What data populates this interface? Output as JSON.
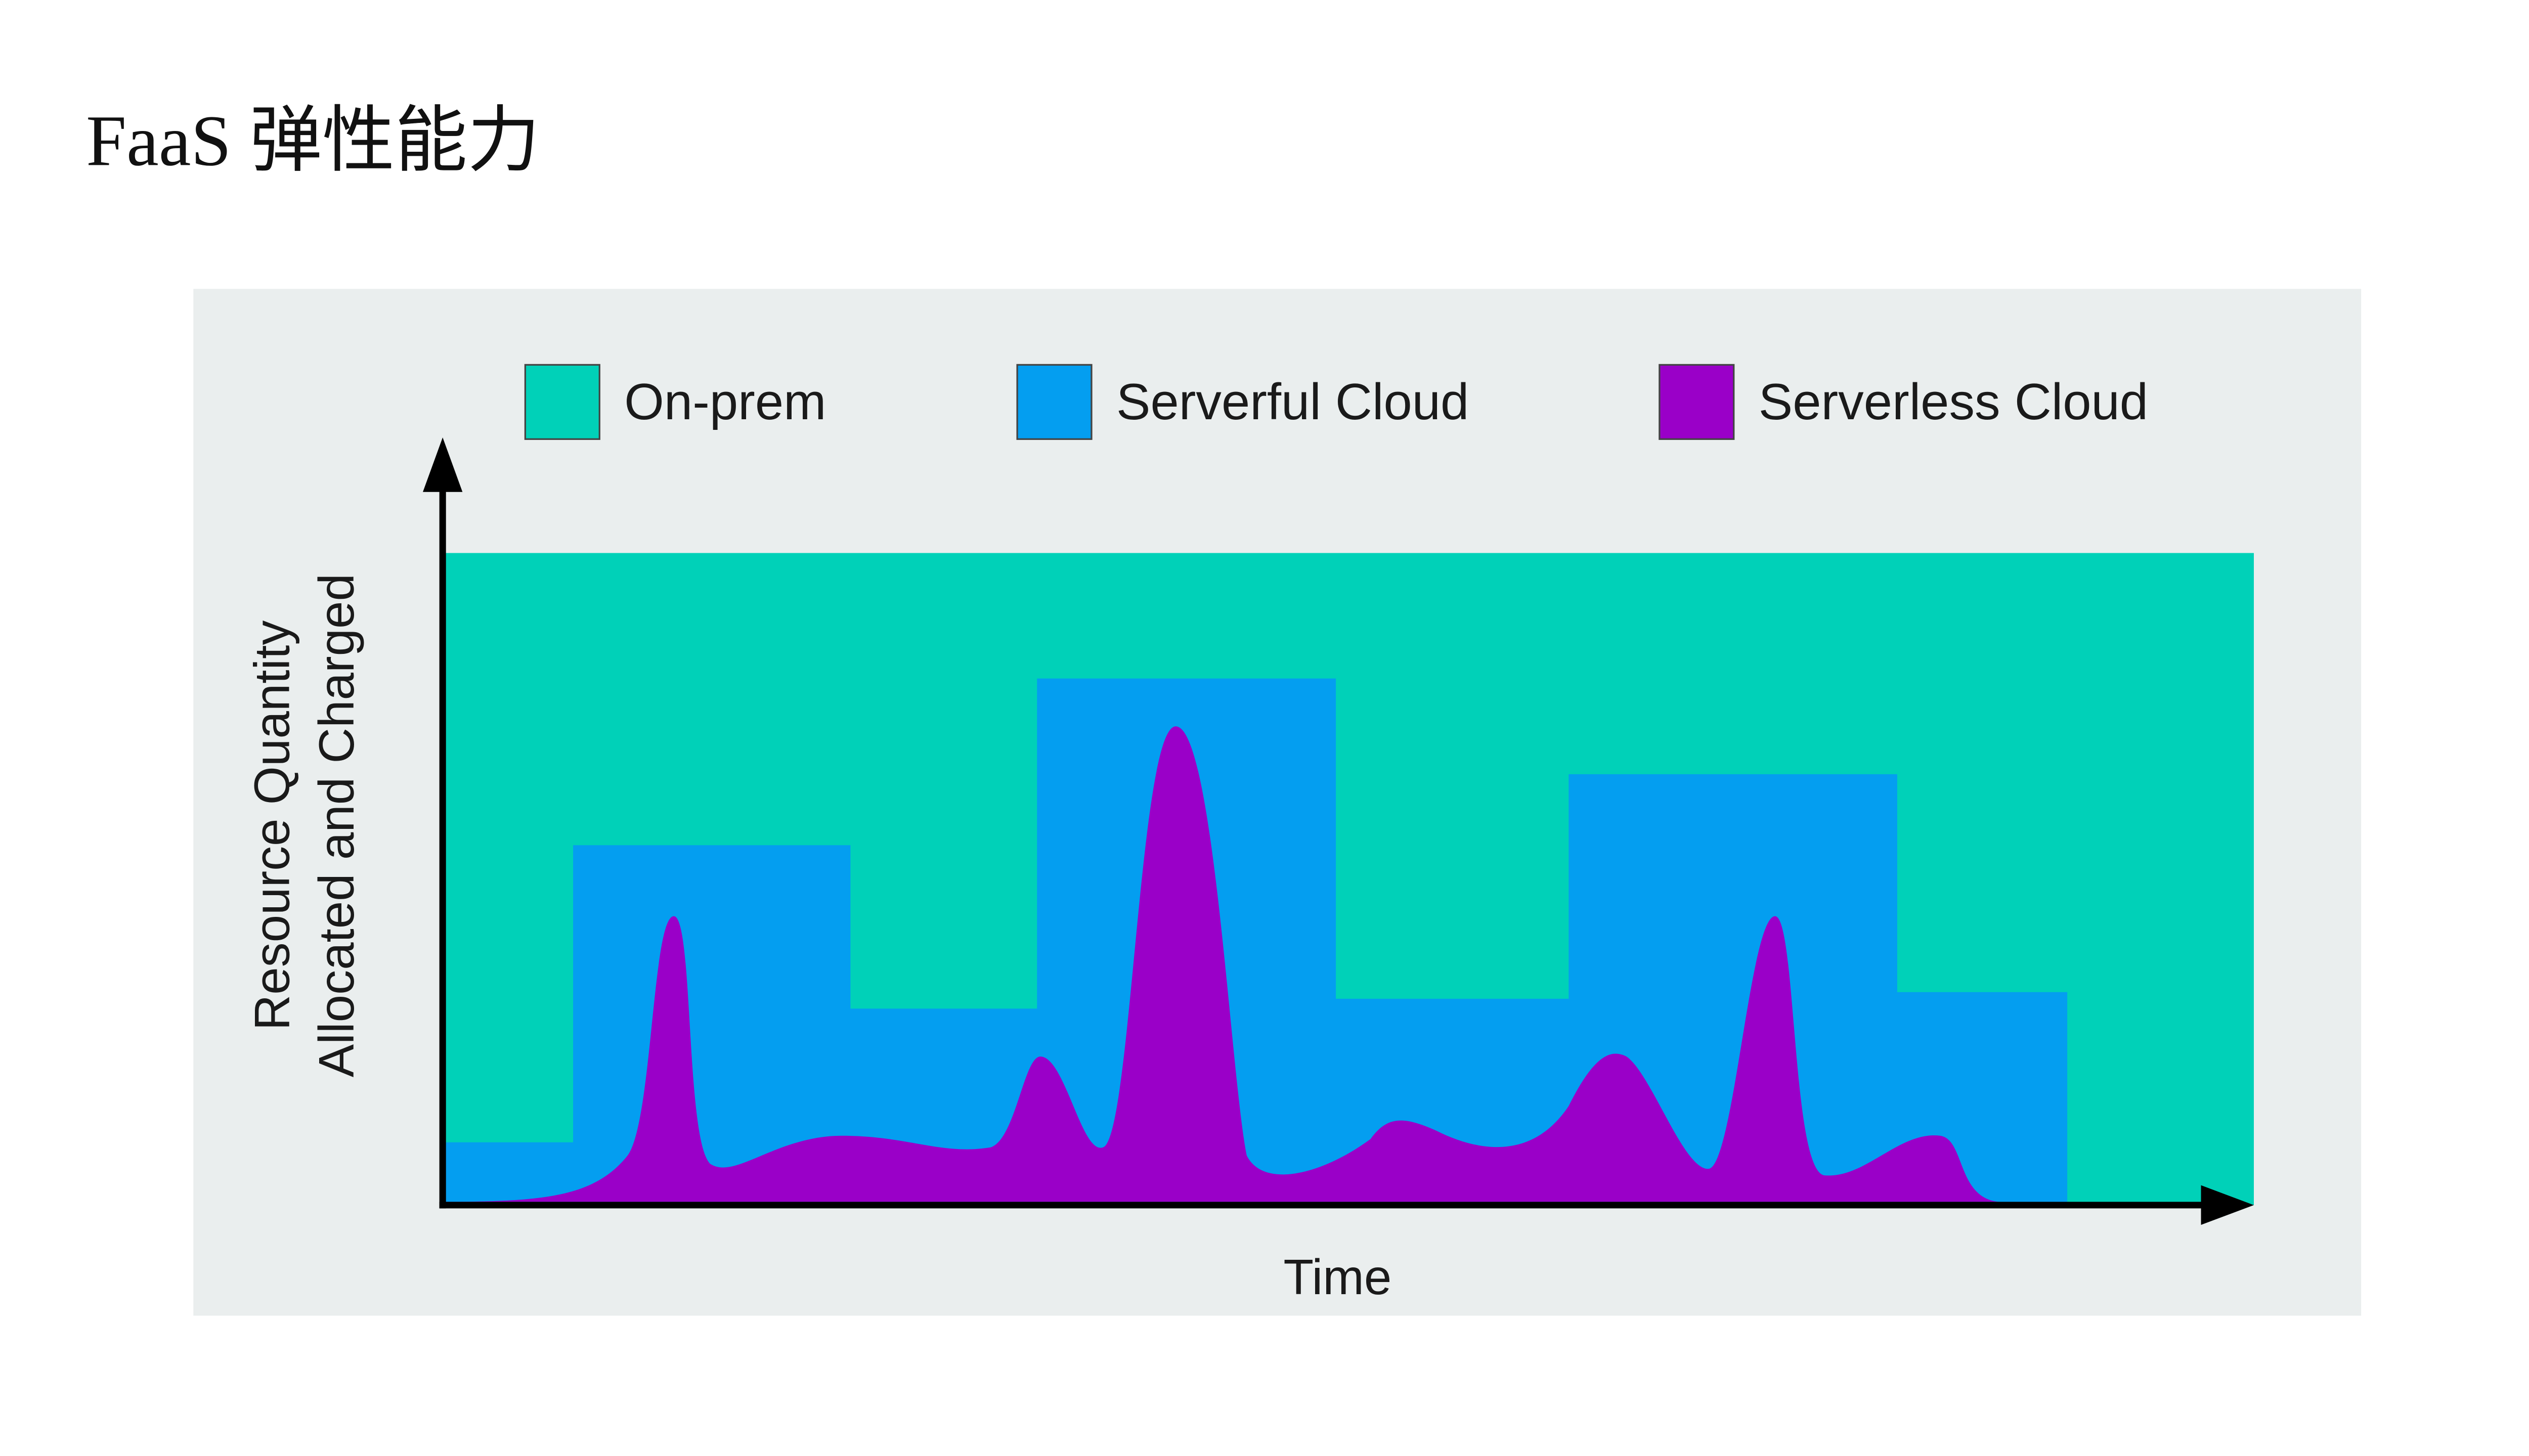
{
  "title": "FaaS 弹性能力",
  "figure": {
    "legend": [
      "On-prem",
      "Serverful Cloud",
      "Serverless Cloud"
    ],
    "y_axis_label": [
      "Resource Quantity",
      "Allocated and Charged"
    ],
    "x_axis_label": "Time"
  }
}
